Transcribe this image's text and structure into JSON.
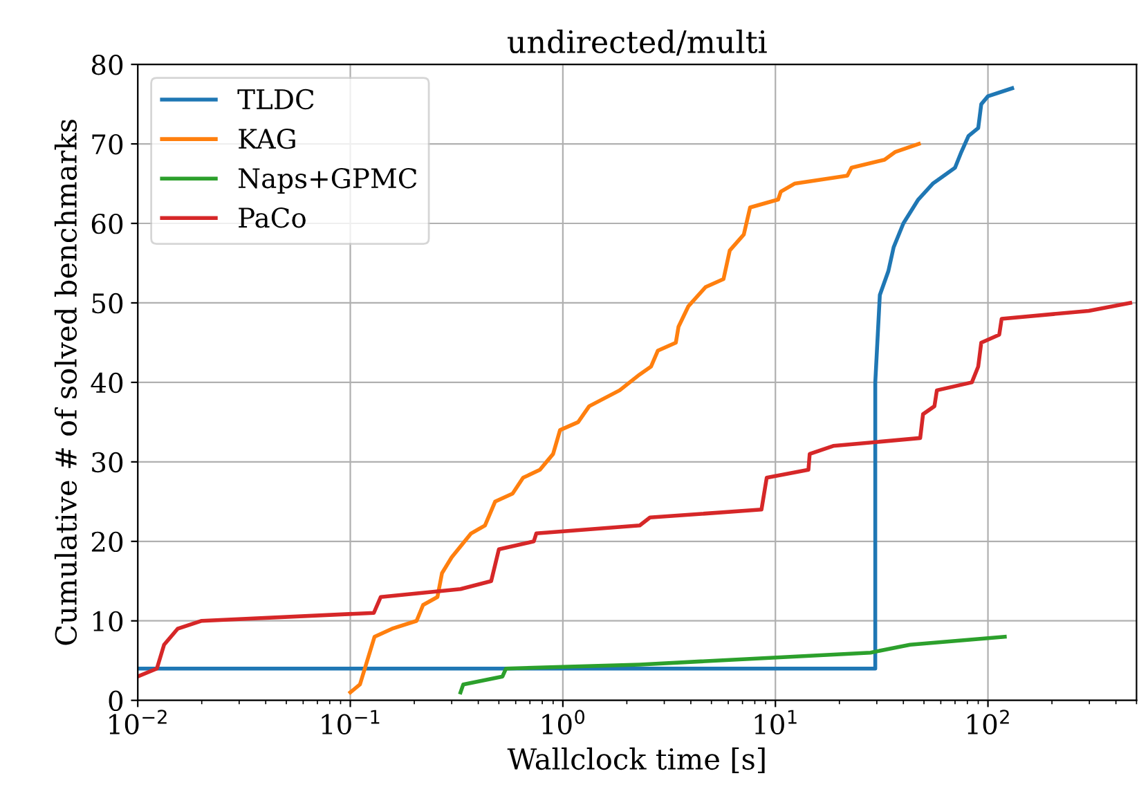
{
  "chart_data": {
    "type": "line",
    "title": "undirected/multi",
    "xlabel": "Wallclock time [s]",
    "ylabel": "Cumulative # of solved benchmarks",
    "log": "x",
    "grid": true,
    "legend": "top left",
    "marker": "none",
    "line_style": "solid",
    "xlim": [
      0.01,
      500
    ],
    "xticks": [
      {
        "value": 0.01,
        "label": "10$^{−2}$"
      },
      {
        "value": 0.1,
        "label": "10$^{−1}$"
      },
      {
        "value": 1,
        "label": "10$^{0}$"
      },
      {
        "value": 10,
        "label": "10$^{1}$"
      },
      {
        "value": 100,
        "label": "10$^{2}$"
      }
    ],
    "ylim": [
      0,
      80
    ],
    "yticks": [
      0,
      10,
      20,
      30,
      40,
      50,
      60,
      70,
      80
    ],
    "series": [
      {
        "name": "TLDC",
        "color": "#1f77b4",
        "x": [
          0.01,
          29.5,
          29.5,
          29.5,
          31,
          34,
          36,
          40,
          47,
          55,
          70,
          75,
          81,
          90,
          93,
          100,
          130
        ],
        "values": [
          4,
          4,
          21,
          40,
          51,
          54,
          57,
          60,
          63,
          65,
          67,
          69,
          71,
          72,
          75,
          76,
          77
        ]
      },
      {
        "name": "KAG",
        "color": "#ff7f0e",
        "x": [
          0.1,
          0.111,
          0.13,
          0.157,
          0.205,
          0.22,
          0.257,
          0.27,
          0.3,
          0.37,
          0.43,
          0.48,
          0.58,
          0.65,
          0.78,
          0.9,
          0.97,
          1.18,
          1.33,
          1.85,
          2.3,
          2.6,
          2.8,
          3.4,
          3.5,
          3.9,
          4.7,
          5.7,
          6.1,
          7.1,
          7.6,
          10.3,
          10.6,
          12.3,
          21.8,
          22.8,
          32.6,
          36.7,
          47.3
        ],
        "values": [
          1,
          2,
          8,
          9,
          10,
          12,
          13,
          16,
          18,
          21,
          22,
          25,
          26,
          28,
          29,
          31,
          34,
          35,
          37,
          39,
          41,
          42,
          44,
          45,
          47,
          49.6,
          52,
          53,
          56.6,
          58.6,
          62,
          63,
          64,
          65,
          66,
          67,
          68,
          69,
          70
        ]
      },
      {
        "name": "Naps+GPMC",
        "color": "#2ca02c",
        "x": [
          0.33,
          0.34,
          0.52,
          0.54,
          2.3,
          28,
          43,
          120
        ],
        "values": [
          1,
          2,
          3,
          4,
          4.5,
          6,
          7,
          8
        ]
      },
      {
        "name": "PaCo",
        "color": "#d62728",
        "x": [
          0.01,
          0.0123,
          0.0133,
          0.0154,
          0.02,
          0.129,
          0.139,
          0.33,
          0.46,
          0.5,
          0.73,
          0.75,
          2.3,
          2.57,
          8.6,
          9.1,
          14.3,
          14.5,
          18.7,
          48,
          49.5,
          56,
          57.5,
          84,
          90,
          93,
          113,
          116,
          298,
          467
        ],
        "values": [
          3,
          4,
          7,
          9,
          10,
          11,
          13,
          14,
          15,
          19,
          20,
          21,
          22,
          23,
          24,
          28,
          29,
          31,
          32,
          33,
          36,
          37,
          39,
          40,
          42,
          45,
          46,
          48,
          49,
          50
        ]
      }
    ]
  }
}
